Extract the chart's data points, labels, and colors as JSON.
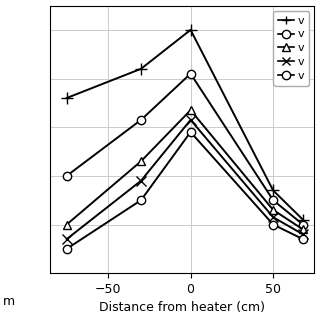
{
  "xlabel": "Distance from heater (cm)",
  "xlim": [
    -85,
    75
  ],
  "x_ticks": [
    -50,
    0,
    50
  ],
  "background_color": "#ffffff",
  "grid_color": "#cccccc",
  "series": [
    {
      "label": "v",
      "marker": "+",
      "x": [
        -75,
        -30,
        0,
        50,
        68
      ],
      "y": [
        0.72,
        0.84,
        1.0,
        0.34,
        0.22
      ],
      "color": "#000000",
      "linewidth": 1.4,
      "markersize": 9,
      "markerfacecolor": "#000000"
    },
    {
      "label": "v",
      "marker": "o",
      "x": [
        -75,
        -30,
        0,
        50,
        68
      ],
      "y": [
        0.4,
        0.63,
        0.82,
        0.3,
        0.2
      ],
      "color": "#000000",
      "linewidth": 1.4,
      "markersize": 6,
      "markerfacecolor": "white"
    },
    {
      "label": "v",
      "marker": "^",
      "x": [
        -75,
        -30,
        0,
        50,
        68
      ],
      "y": [
        0.2,
        0.46,
        0.67,
        0.26,
        0.18
      ],
      "color": "#000000",
      "linewidth": 1.4,
      "markersize": 6,
      "markerfacecolor": "white"
    },
    {
      "label": "v",
      "marker": "x",
      "x": [
        -75,
        -30,
        0,
        50,
        68
      ],
      "y": [
        0.14,
        0.38,
        0.63,
        0.23,
        0.16
      ],
      "color": "#000000",
      "linewidth": 1.4,
      "markersize": 7,
      "markerfacecolor": "#000000"
    },
    {
      "label": "v",
      "marker": "o",
      "x": [
        -75,
        -30,
        0,
        50,
        68
      ],
      "y": [
        0.1,
        0.3,
        0.58,
        0.2,
        0.14
      ],
      "color": "#000000",
      "linewidth": 1.4,
      "markersize": 6,
      "markerfacecolor": "white"
    }
  ],
  "ylim": [
    0.0,
    1.1
  ],
  "legend_marker_list": [
    "+",
    "o",
    "^",
    "x",
    "o"
  ],
  "legend_mfc_list": [
    "#000000",
    "white",
    "white",
    "#000000",
    "white"
  ],
  "legend_labels": [
    "v",
    "v",
    "v",
    "v",
    "v"
  ]
}
